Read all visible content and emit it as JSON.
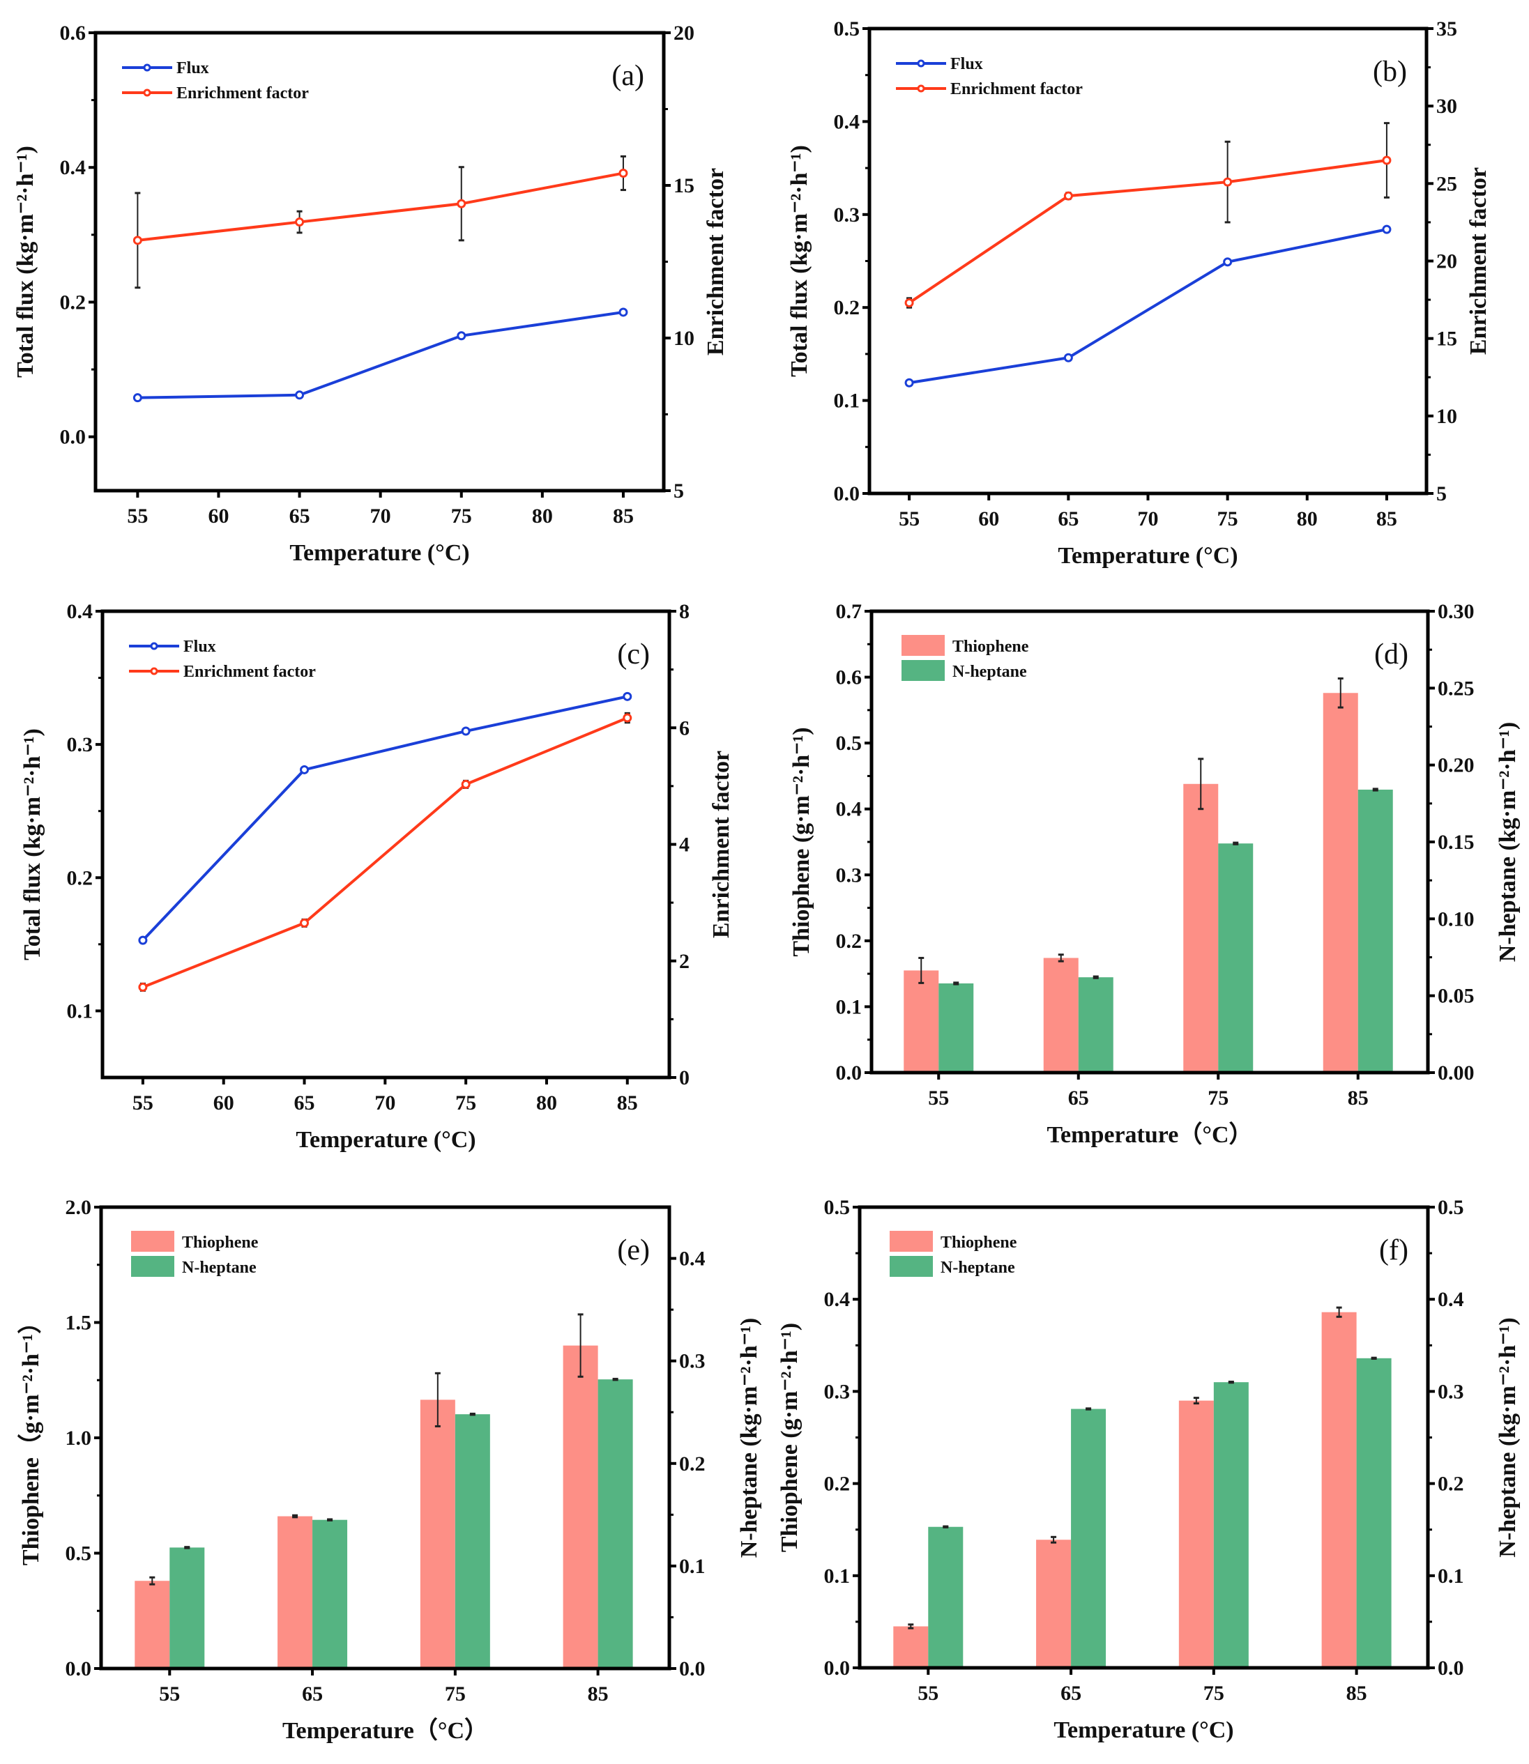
{
  "figure": {
    "colors": {
      "flux": "#1a3fd8",
      "enrichment": "#ff3a1a",
      "thiophene": "#fd8f86",
      "nheptane": "#55b482",
      "errorbar": "#222222"
    }
  },
  "chart_data": [
    {
      "id": "a",
      "type": "line",
      "panel_label": "(a)",
      "xlabel": "Temperature (°C)",
      "ylabel": "Total flux (kg·m⁻²·h⁻¹)",
      "ylabel_right": "Enrichment factor",
      "x": [
        55,
        65,
        75,
        85
      ],
      "xlim": [
        52.4,
        87.5
      ],
      "xticks": [
        55,
        60,
        65,
        70,
        75,
        80,
        85
      ],
      "ylim": [
        -0.08,
        0.6
      ],
      "yticks": [
        "0.0",
        "0.2",
        "0.4",
        "0.6"
      ],
      "yticks_values": [
        0,
        0.2,
        0.4,
        0.6
      ],
      "ylim_right": [
        5,
        20
      ],
      "yticks_right": [
        "5",
        "10",
        "15",
        "20"
      ],
      "yticks_right_values": [
        5,
        10,
        15,
        20
      ],
      "legend_position": "top-left",
      "series": [
        {
          "name": "Flux",
          "axis": "left",
          "color_key": "flux",
          "values": [
            0.058,
            0.062,
            0.15,
            0.185
          ],
          "errors": null
        },
        {
          "name": "Enrichment factor",
          "axis": "right",
          "color_key": "enrichment",
          "values": [
            13.2,
            13.8,
            14.4,
            15.4
          ],
          "errors": [
            1.55,
            0.35,
            1.2,
            0.55
          ]
        }
      ],
      "grid": false
    },
    {
      "id": "b",
      "type": "line",
      "panel_label": "(b)",
      "xlabel": "Temperature (°C)",
      "ylabel": "Total flux (kg·m⁻²·h⁻¹)",
      "ylabel_right": "Enrichment factor",
      "x": [
        55,
        65,
        75,
        85
      ],
      "xlim": [
        52.5,
        87.5
      ],
      "xticks": [
        55,
        60,
        65,
        70,
        75,
        80,
        85
      ],
      "ylim": [
        0,
        0.5
      ],
      "yticks": [
        "0.0",
        "0.1",
        "0.2",
        "0.3",
        "0.4",
        "0.5"
      ],
      "yticks_values": [
        0,
        0.1,
        0.2,
        0.3,
        0.4,
        0.5
      ],
      "ylim_right": [
        5,
        35
      ],
      "yticks_right": [
        "5",
        "10",
        "15",
        "20",
        "25",
        "30",
        "35"
      ],
      "yticks_right_values": [
        5,
        10,
        15,
        20,
        25,
        30,
        35
      ],
      "legend_position": "top-left",
      "series": [
        {
          "name": "Flux",
          "axis": "left",
          "color_key": "flux",
          "values": [
            0.119,
            0.146,
            0.249,
            0.284
          ],
          "errors": null
        },
        {
          "name": "Enrichment factor",
          "axis": "right",
          "color_key": "enrichment",
          "values": [
            17.3,
            24.2,
            25.1,
            26.5
          ],
          "errors": [
            0.3,
            0.2,
            2.6,
            2.4
          ]
        }
      ],
      "grid": false
    },
    {
      "id": "c",
      "type": "line",
      "panel_label": "(c)",
      "xlabel": "Temperature (°C)",
      "ylabel": "Total flux (kg·m⁻²·h⁻¹)",
      "ylabel_right": "Enrichment factor",
      "x": [
        55,
        65,
        75,
        85
      ],
      "xlim": [
        52.5,
        87.6
      ],
      "xticks": [
        55,
        60,
        65,
        70,
        75,
        80,
        85
      ],
      "ylim": [
        0.05,
        0.4
      ],
      "yticks": [
        "0.1",
        "0.2",
        "0.3",
        "0.4"
      ],
      "yticks_values": [
        0.1,
        0.2,
        0.3,
        0.4
      ],
      "ylim_right": [
        0,
        8
      ],
      "yticks_right": [
        "0",
        "2",
        "4",
        "6",
        "8"
      ],
      "yticks_right_values": [
        0,
        2,
        4,
        6,
        8
      ],
      "legend_position": "top-left",
      "series": [
        {
          "name": "Flux",
          "axis": "left",
          "color_key": "flux",
          "values": [
            0.153,
            0.281,
            0.31,
            0.336
          ],
          "errors": null
        },
        {
          "name": "Enrichment factor",
          "axis": "right",
          "color_key": "enrichment",
          "values": [
            1.55,
            2.65,
            5.03,
            6.17
          ],
          "errors": [
            0.06,
            0.06,
            0.06,
            0.08
          ]
        }
      ],
      "grid": false
    },
    {
      "id": "d",
      "type": "bar",
      "panel_label": "(d)",
      "xlabel": "Temperature（°C）",
      "ylabel": "Thiophene (g·m⁻²·h⁻¹)",
      "ylabel_right": "N-heptane (kg·m⁻²·h⁻¹)",
      "categories": [
        "55",
        "65",
        "75",
        "85"
      ],
      "ylim": [
        0,
        0.7
      ],
      "yticks": [
        "0.0",
        "0.1",
        "0.2",
        "0.3",
        "0.4",
        "0.5",
        "0.6",
        "0.7"
      ],
      "yticks_values": [
        0,
        0.1,
        0.2,
        0.3,
        0.4,
        0.5,
        0.6,
        0.7
      ],
      "ylim_right": [
        0,
        0.3
      ],
      "yticks_right": [
        "0.00",
        "0.05",
        "0.10",
        "0.15",
        "0.20",
        "0.25",
        "0.30"
      ],
      "yticks_right_values": [
        0,
        0.05,
        0.1,
        0.15,
        0.2,
        0.25,
        0.3
      ],
      "legend_position": "top-left",
      "series": [
        {
          "name": "Thiophene",
          "axis": "left",
          "color_key": "thiophene",
          "values": [
            0.155,
            0.174,
            0.438,
            0.576
          ],
          "errors": [
            0.019,
            0.005,
            0.038,
            0.022
          ]
        },
        {
          "name": "N-heptane",
          "axis": "right",
          "color_key": "nheptane",
          "values": [
            0.058,
            0.062,
            0.149,
            0.184
          ],
          "errors": [
            0.0005,
            0.0005,
            0.0005,
            0.0005
          ]
        }
      ],
      "grid": false
    },
    {
      "id": "e",
      "type": "bar",
      "panel_label": "(e)",
      "xlabel": "Temperature（°C）",
      "ylabel": "Thiophene（g·m⁻²·h⁻¹）",
      "ylabel_right": "N-heptane (kg·m⁻²·h⁻¹)",
      "categories": [
        "55",
        "65",
        "75",
        "85"
      ],
      "ylim": [
        0,
        2.0
      ],
      "yticks": [
        "0.0",
        "0.5",
        "1.0",
        "1.5",
        "2.0"
      ],
      "yticks_values": [
        0,
        0.5,
        1.0,
        1.5,
        2.0
      ],
      "ylim_right": [
        0,
        0.45
      ],
      "yticks_right": [
        "0.0",
        "0.1",
        "0.2",
        "0.3",
        "0.4"
      ],
      "yticks_right_values": [
        0,
        0.1,
        0.2,
        0.3,
        0.4
      ],
      "legend_position": "top-left",
      "series": [
        {
          "name": "Thiophene",
          "axis": "left",
          "color_key": "thiophene",
          "values": [
            0.38,
            0.66,
            1.165,
            1.4
          ],
          "errors": [
            0.015,
            0.004,
            0.115,
            0.135
          ]
        },
        {
          "name": "N-heptane",
          "axis": "right",
          "color_key": "nheptane",
          "values": [
            0.118,
            0.145,
            0.248,
            0.282
          ],
          "errors": [
            0.0005,
            0.0005,
            0.0005,
            0.0005
          ]
        }
      ],
      "grid": false
    },
    {
      "id": "f",
      "type": "bar",
      "panel_label": "(f)",
      "xlabel": "Temperature (°C)",
      "ylabel": "Thiophene (g·m⁻²·h⁻¹)",
      "ylabel_right": "N-heptane (kg·m⁻²·h⁻¹)",
      "categories": [
        "55",
        "65",
        "75",
        "85"
      ],
      "ylim": [
        0,
        0.5
      ],
      "yticks": [
        "0.0",
        "0.1",
        "0.2",
        "0.3",
        "0.4",
        "0.5"
      ],
      "yticks_values": [
        0,
        0.1,
        0.2,
        0.3,
        0.4,
        0.5
      ],
      "ylim_right": [
        0,
        0.5
      ],
      "yticks_right": [
        "0.0",
        "0.1",
        "0.2",
        "0.3",
        "0.4",
        "0.5"
      ],
      "yticks_right_values": [
        0,
        0.1,
        0.2,
        0.3,
        0.4,
        0.5
      ],
      "legend_position": "top-left",
      "series": [
        {
          "name": "Thiophene",
          "axis": "left",
          "color_key": "thiophene",
          "values": [
            0.045,
            0.139,
            0.29,
            0.386
          ],
          "errors": [
            0.002,
            0.003,
            0.003,
            0.005
          ]
        },
        {
          "name": "N-heptane",
          "axis": "right",
          "color_key": "nheptane",
          "values": [
            0.153,
            0.281,
            0.31,
            0.336
          ],
          "errors": [
            0.0005,
            0.0005,
            0.0005,
            0.0005
          ]
        }
      ],
      "grid": false
    }
  ]
}
